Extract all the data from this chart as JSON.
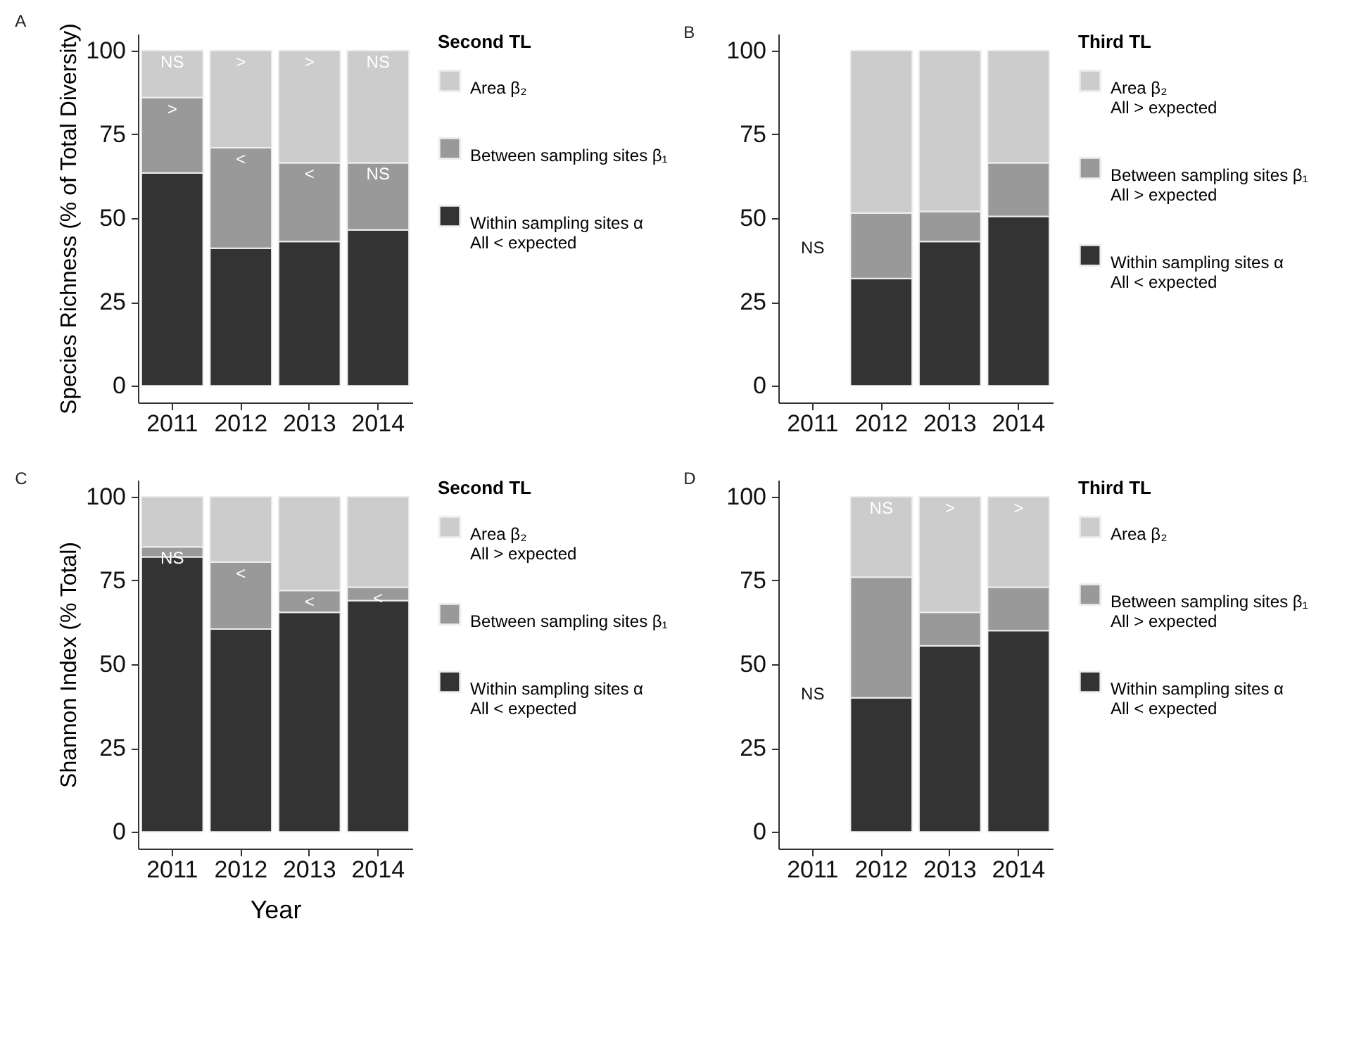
{
  "chart_data": [
    {
      "type": "bar",
      "title": "A",
      "ylabel": "Species Richness (% of Total Diversity)",
      "categories": [
        "2011",
        "2012",
        "2013",
        "2014"
      ],
      "stacked": true,
      "ylim": [
        -5,
        105
      ],
      "yticks": [
        0,
        25,
        50,
        75,
        100
      ],
      "legend": "right",
      "legend_title": "Second TL",
      "series": [
        {
          "name": "Within sampling sites α\nAll < expected",
          "color": "#333333",
          "values": [
            63.5,
            41,
            43,
            46.5
          ]
        },
        {
          "name": "Between sampling sites β₁",
          "color": "#999999",
          "values": [
            22.5,
            30,
            23.5,
            20
          ]
        },
        {
          "name": "Area β₂",
          "color": "#cccccc",
          "values": [
            14,
            29,
            33.5,
            33.5
          ]
        }
      ],
      "annotations": [
        {
          "text": "NS",
          "x": "2011",
          "y": 100
        },
        {
          "text": ">",
          "x": "2011",
          "y": 86
        },
        {
          "text": ">",
          "x": "2012",
          "y": 100
        },
        {
          "text": "<",
          "x": "2012",
          "y": 71
        },
        {
          "text": ">",
          "x": "2013",
          "y": 100
        },
        {
          "text": "<",
          "x": "2013",
          "y": 66.5
        },
        {
          "text": "NS",
          "x": "2014",
          "y": 100
        },
        {
          "text": "NS",
          "x": "2014",
          "y": 66.5
        }
      ]
    },
    {
      "type": "bar",
      "title": "B",
      "categories": [
        "2011",
        "2012",
        "2013",
        "2014"
      ],
      "stacked": true,
      "ylim": [
        -5,
        105
      ],
      "yticks": [
        0,
        25,
        50,
        75,
        100
      ],
      "legend": "right",
      "legend_title": "Third TL",
      "series": [
        {
          "name": "Within sampling sites α\nAll < expected",
          "color": "#333333",
          "values": [
            null,
            32,
            43,
            50.5
          ]
        },
        {
          "name": "Between sampling sites β₁\nAll > expected",
          "color": "#999999",
          "values": [
            null,
            19.5,
            9,
            16
          ]
        },
        {
          "name": "Area β₂\nAll > expected",
          "color": "#cccccc",
          "values": [
            null,
            48.5,
            48,
            33.5
          ]
        }
      ],
      "annotations": [
        "NS"
      ]
    },
    {
      "type": "bar",
      "title": "C",
      "ylabel": "Shannon Index (% Total)",
      "xlabel": "Year",
      "categories": [
        "2011",
        "2012",
        "2013",
        "2014"
      ],
      "stacked": true,
      "ylim": [
        -5,
        105
      ],
      "yticks": [
        0,
        25,
        50,
        75,
        100
      ],
      "legend": "right",
      "legend_title": "Second TL",
      "series": [
        {
          "name": "Within sampling sites α\nAll < expected",
          "color": "#333333",
          "values": [
            82,
            60.5,
            65.5,
            69
          ]
        },
        {
          "name": "Between sampling sites β₁",
          "color": "#999999",
          "values": [
            3,
            20,
            6.5,
            4
          ]
        },
        {
          "name": "Area β₂\nAll > expected",
          "color": "#cccccc",
          "values": [
            15,
            19.5,
            28,
            27
          ]
        }
      ],
      "annotations": [
        {
          "text": "NS",
          "x": "2011",
          "y": 85
        },
        {
          "text": "<",
          "x": "2012",
          "y": 80.5
        },
        {
          "text": "<",
          "x": "2013",
          "y": 72
        },
        {
          "text": "<",
          "x": "2014",
          "y": 73
        }
      ]
    },
    {
      "type": "bar",
      "title": "D",
      "categories": [
        "2011",
        "2012",
        "2013",
        "2014"
      ],
      "stacked": true,
      "ylim": [
        -5,
        105
      ],
      "yticks": [
        0,
        25,
        50,
        75,
        100
      ],
      "legend": "right",
      "legend_title": "Third TL",
      "series": [
        {
          "name": "Within sampling sites α\nAll < expected",
          "color": "#333333",
          "values": [
            null,
            40,
            55.5,
            60
          ]
        },
        {
          "name": "Between sampling sites β₁\nAll > expected",
          "color": "#999999",
          "values": [
            null,
            36,
            10,
            13
          ]
        },
        {
          "name": "Area β₂",
          "color": "#cccccc",
          "values": [
            null,
            24,
            34.5,
            27
          ]
        }
      ],
      "annotations": [
        "NS",
        {
          "text": "NS",
          "x": "2012",
          "y": 100
        },
        {
          "text": ">",
          "x": "2013",
          "y": 100
        },
        {
          "text": ">",
          "x": "2014",
          "y": 100
        }
      ]
    }
  ]
}
